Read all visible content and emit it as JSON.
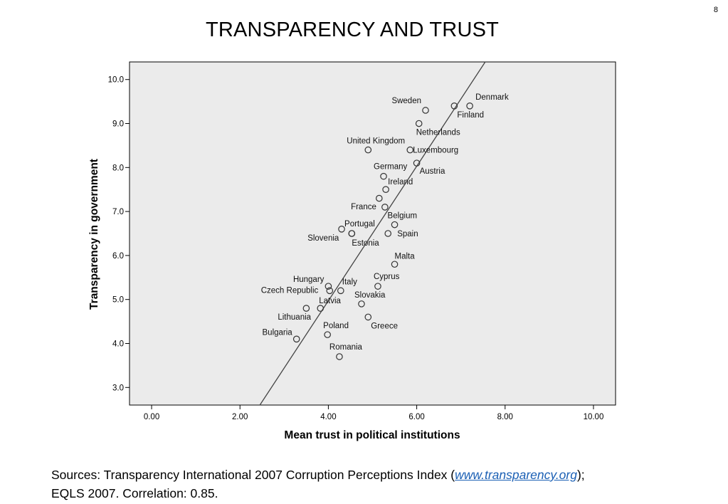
{
  "slide": {
    "number": "8",
    "title": "TRANSPARENCY AND TRUST"
  },
  "chart_data": {
    "type": "scatter",
    "xlabel": "Mean trust in political institutions",
    "ylabel": "Transparency in government",
    "xlim": [
      -0.5,
      10.5
    ],
    "ylim": [
      2.6,
      10.4
    ],
    "x_ticks": [
      "0.00",
      "2.00",
      "4.00",
      "6.00",
      "8.00",
      "10.00"
    ],
    "y_ticks": [
      "3.0",
      "4.0",
      "5.0",
      "6.0",
      "7.0",
      "8.0",
      "9.0",
      "10.0"
    ],
    "fit_line": {
      "x1": 2.45,
      "y1": 2.6,
      "x2": 7.55,
      "y2": 10.4
    },
    "points": [
      {
        "name": "Denmark",
        "x": 7.2,
        "y": 9.4
      },
      {
        "name": "Finland",
        "x": 6.85,
        "y": 9.4
      },
      {
        "name": "Sweden",
        "x": 6.2,
        "y": 9.3
      },
      {
        "name": "Netherlands",
        "x": 6.05,
        "y": 9.0
      },
      {
        "name": "United Kingdom",
        "x": 4.9,
        "y": 8.4
      },
      {
        "name": "Luxembourg",
        "x": 5.85,
        "y": 8.4
      },
      {
        "name": "Austria",
        "x": 6.0,
        "y": 8.1
      },
      {
        "name": "Germany",
        "x": 5.25,
        "y": 7.8
      },
      {
        "name": "Ireland",
        "x": 5.3,
        "y": 7.5
      },
      {
        "name": "",
        "x": 5.15,
        "y": 7.3
      },
      {
        "name": "France",
        "x": 5.28,
        "y": 7.1
      },
      {
        "name": "Belgium",
        "x": 5.5,
        "y": 6.7
      },
      {
        "name": "Portugal",
        "x": 4.3,
        "y": 6.6
      },
      {
        "name": "Slovenia",
        "x": 4.53,
        "y": 6.5
      },
      {
        "name": "Spain",
        "x": 5.35,
        "y": 6.5
      },
      {
        "name": "Estonia",
        "x": 4.53,
        "y": 6.5
      },
      {
        "name": "Malta",
        "x": 5.5,
        "y": 5.8
      },
      {
        "name": "Cyprus",
        "x": 5.12,
        "y": 5.3
      },
      {
        "name": "Hungary",
        "x": 4.0,
        "y": 5.3
      },
      {
        "name": "Czech Republic",
        "x": 4.03,
        "y": 5.2
      },
      {
        "name": "Italy",
        "x": 4.28,
        "y": 5.2
      },
      {
        "name": "Slovakia",
        "x": 4.75,
        "y": 4.9
      },
      {
        "name": "Latvia",
        "x": 3.82,
        "y": 4.8
      },
      {
        "name": "Lithuania",
        "x": 3.5,
        "y": 4.8
      },
      {
        "name": "Greece",
        "x": 4.9,
        "y": 4.6
      },
      {
        "name": "Poland",
        "x": 3.98,
        "y": 4.2
      },
      {
        "name": "Bulgaria",
        "x": 3.28,
        "y": 4.1
      },
      {
        "name": "Romania",
        "x": 4.25,
        "y": 3.7
      }
    ]
  },
  "footnote": {
    "line1_prefix": "Sources: Transparency International 2007 Corruption Perceptions Index (",
    "link_text": "www.transparency.org",
    "line1_suffix": ");",
    "line2": "EQLS 2007. Correlation: 0.85."
  }
}
